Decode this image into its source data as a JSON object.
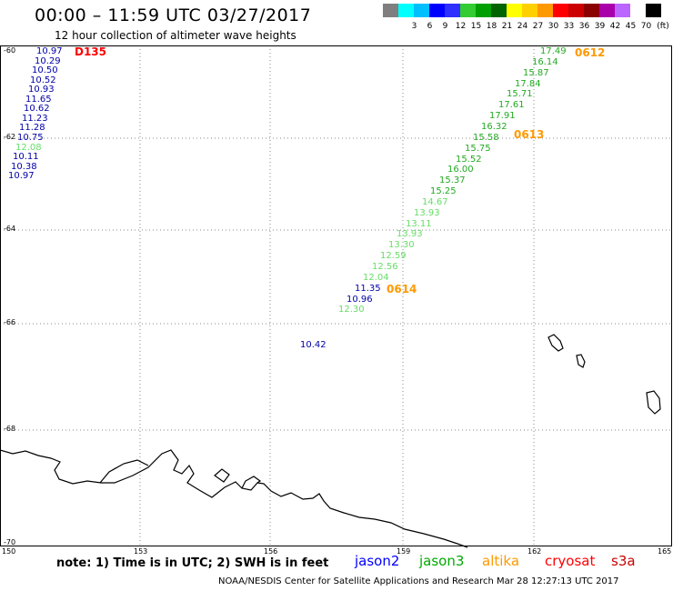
{
  "title": "00:00 – 11:59 UTC 03/27/2017",
  "subtitle": "12 hour collection of altimeter wave heights",
  "legend": {
    "unit": "(ft)",
    "colors": [
      "#7f7f7f",
      "#00ffff",
      "#00bfff",
      "#0000ff",
      "#2f2fff",
      "#33cc33",
      "#00a000",
      "#006400",
      "#ffff00",
      "#ffd000",
      "#ff9900",
      "#ff0000",
      "#cc0000",
      "#8b0000",
      "#aa00aa",
      "#bb66ff",
      "#ffffff",
      "#000000"
    ],
    "labels": [
      "",
      "3",
      "6",
      "9",
      "12",
      "15",
      "18",
      "21",
      "24",
      "27",
      "30",
      "33",
      "36",
      "39",
      "42",
      "45",
      "70",
      ""
    ]
  },
  "map": {
    "lon_ticks": [
      "150",
      "153",
      "156",
      "159",
      "162",
      "165"
    ],
    "lat_ticks": [
      "-60",
      "-62",
      "-64",
      "-66",
      "-68",
      "-70"
    ]
  },
  "pass_labels": [
    {
      "text": "D135",
      "color": "#ff0000"
    },
    {
      "text": "0612",
      "color": "#ff9900"
    },
    {
      "text": "0613",
      "color": "#ff9900"
    },
    {
      "text": "0614",
      "color": "#ff9900"
    }
  ],
  "wave_heights": {
    "d135_track": [
      {
        "text": "10.97",
        "color": "#0000aa"
      },
      {
        "text": "10.29",
        "color": "#0000aa"
      },
      {
        "text": "10.50",
        "color": "#0000aa"
      },
      {
        "text": "10.52",
        "color": "#0000aa"
      },
      {
        "text": "10.93",
        "color": "#0000aa"
      },
      {
        "text": "11.65",
        "color": "#0000aa"
      },
      {
        "text": "10.62",
        "color": "#0000aa"
      },
      {
        "text": "11.23",
        "color": "#0000aa"
      },
      {
        "text": "11.28",
        "color": "#0000aa"
      },
      {
        "text": "10.75",
        "color": "#0000aa"
      },
      {
        "text": "12.08",
        "color": "#66dd66"
      },
      {
        "text": "10.11",
        "color": "#0000aa"
      },
      {
        "text": "10.38",
        "color": "#0000aa"
      },
      {
        "text": "10.97",
        "color": "#0000aa"
      }
    ],
    "main_track": [
      {
        "text": "17.49",
        "color": "#22aa22"
      },
      {
        "text": "16.14",
        "color": "#22aa22"
      },
      {
        "text": "15.87",
        "color": "#22aa22"
      },
      {
        "text": "17.84",
        "color": "#22aa22"
      },
      {
        "text": "15.71",
        "color": "#22aa22"
      },
      {
        "text": "17.61",
        "color": "#22aa22"
      },
      {
        "text": "17.91",
        "color": "#22aa22"
      },
      {
        "text": "16.32",
        "color": "#22aa22"
      },
      {
        "text": "15.58",
        "color": "#22aa22"
      },
      {
        "text": "15.75",
        "color": "#22aa22"
      },
      {
        "text": "15.52",
        "color": "#22aa22"
      },
      {
        "text": "16.00",
        "color": "#22aa22"
      },
      {
        "text": "15.37",
        "color": "#22aa22"
      },
      {
        "text": "15.25",
        "color": "#22aa22"
      },
      {
        "text": "14.67",
        "color": "#66dd66"
      },
      {
        "text": "13.93",
        "color": "#66dd66"
      },
      {
        "text": "13.11",
        "color": "#66dd66"
      },
      {
        "text": "13.93",
        "color": "#66dd66"
      },
      {
        "text": "13.30",
        "color": "#66dd66"
      },
      {
        "text": "12.59",
        "color": "#66dd66"
      },
      {
        "text": "12.56",
        "color": "#66dd66"
      },
      {
        "text": "12.04",
        "color": "#66dd66"
      },
      {
        "text": "11.35",
        "color": "#0000aa"
      },
      {
        "text": "10.96",
        "color": "#0000aa"
      },
      {
        "text": "12.30",
        "color": "#66dd66"
      }
    ],
    "isolated": [
      {
        "text": "10.42",
        "color": "#0000aa"
      }
    ]
  },
  "note": "note: 1) Time is in UTC; 2) SWH is in feet",
  "satellites": [
    {
      "text": "jason2",
      "color": "#0000ff"
    },
    {
      "text": "jason3",
      "color": "#00aa00"
    },
    {
      "text": "altika",
      "color": "#ff9900"
    },
    {
      "text": "cryosat",
      "color": "#ff0000"
    },
    {
      "text": "s3a",
      "color": "#cc0000"
    }
  ],
  "footer": "NOAA/NESDIS Center for Satellite Applications and Research    Mar 28 12:27:13 UTC 2017"
}
